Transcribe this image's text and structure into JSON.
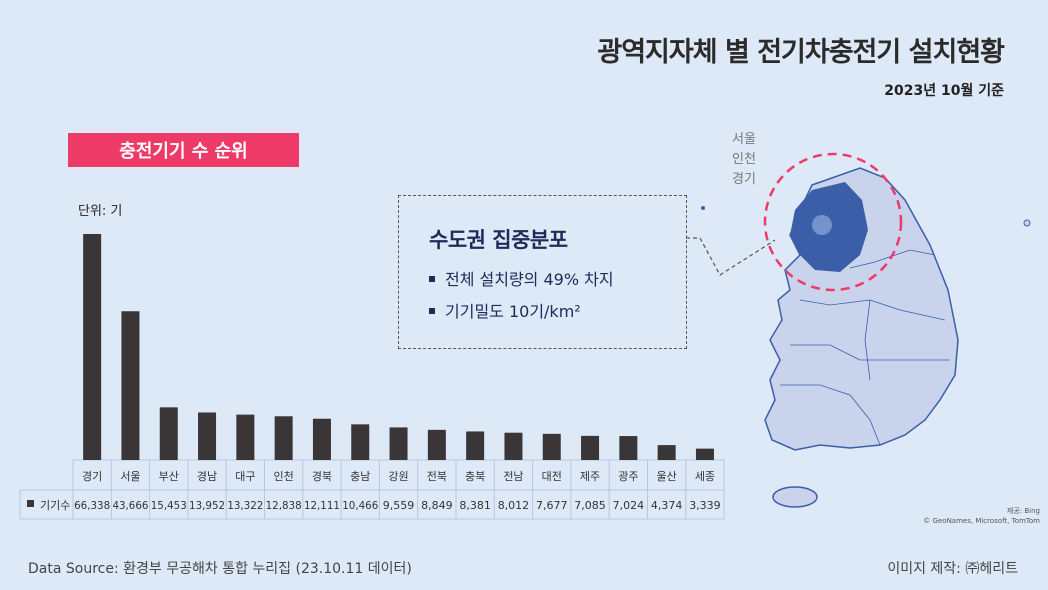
{
  "header": {
    "title": "광역지자체 별 전기차충전기 설치현황",
    "date": "2023년 10월 기준"
  },
  "badge": "충전기기 수 순위",
  "unit_label": "단위: 기",
  "callout": {
    "title": "수도권 집중분포",
    "bullet1": "전체 설치량의 49% 차지",
    "bullet2": "기기밀도 10기/km²"
  },
  "map": {
    "label_lines": [
      "서울",
      "인천",
      "경기"
    ],
    "credit_line1": "제공: Bing",
    "credit_line2": "© GeoNames, Microsoft, TomTom",
    "highlight_color": "#3a5ea8",
    "base_color": "#c9d4ec",
    "circle_color": "#ee3a67"
  },
  "footer": {
    "source": "Data Source: 환경부 무공해차 통합 누리집 (23.10.11 데이터)",
    "maker": "이미지 제작: ㈜헤리트"
  },
  "chart_data": {
    "type": "bar",
    "categories": [
      "경기",
      "서울",
      "부산",
      "경남",
      "대구",
      "인천",
      "경북",
      "충남",
      "강원",
      "전북",
      "충북",
      "전남",
      "대전",
      "제주",
      "광주",
      "울산",
      "세종"
    ],
    "series": [
      {
        "name": "기기수",
        "values": [
          66338,
          43666,
          15453,
          13952,
          13322,
          12838,
          12111,
          10466,
          9559,
          8849,
          8381,
          8012,
          7677,
          7085,
          7024,
          4374,
          3339
        ]
      }
    ],
    "value_labels": [
      "66,338",
      "43,666",
      "15,453",
      "13,952",
      "13,322",
      "12,838",
      "12,111",
      "10,466",
      "9,559",
      "8,849",
      "8,381",
      "8,012",
      "7,677",
      "7,085",
      "7,024",
      "4,374",
      "3,339"
    ],
    "ylabel": "단위: 기",
    "bar_color": "#3a3537",
    "ylim": [
      0,
      70000
    ]
  }
}
